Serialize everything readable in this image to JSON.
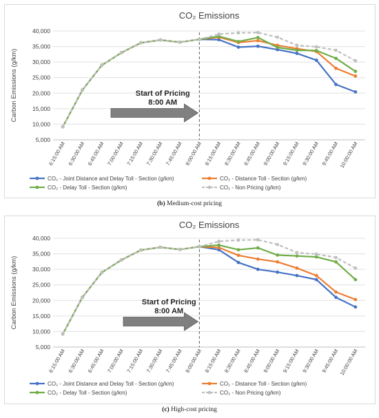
{
  "chart_data": [
    {
      "type": "line",
      "title": "CO₂ Emissions",
      "ylabel": "Carbon Emissions (g/km)",
      "ylim": [
        5000,
        40000
      ],
      "yticks": [
        "5,000",
        "10,000",
        "15,000",
        "20,000",
        "25,000",
        "30,000",
        "35,000",
        "40,000"
      ],
      "categories": [
        "6:15:00 AM",
        "6:30:00 AM",
        "6:45:00 AM",
        "7:00:00 AM",
        "7:15:00 AM",
        "7:30:00 AM",
        "7:45:00 AM",
        "8:00:00 AM",
        "8:15:00 AM",
        "8:30:00 AM",
        "8:45:00 AM",
        "9:00:00 AM",
        "9:15:00 AM",
        "9:30:00 AM",
        "9:45:00 AM",
        "10:00:00 AM"
      ],
      "annotation": {
        "line1": "Start of Pricing",
        "line2": "8:00 AM",
        "at": "8:00:00 AM"
      },
      "legend_position": "bottom",
      "series": [
        {
          "name": "CO₂ - Joint Distance and Delay Toll - Section (g/km)",
          "color": "#4472c4",
          "style": "solid",
          "values": [
            9200,
            21000,
            29000,
            33000,
            36200,
            37100,
            36400,
            37300,
            37200,
            34800,
            35100,
            34000,
            32800,
            30600,
            22800,
            20400
          ]
        },
        {
          "name": "CO₂ - Distance Toll - Section (g/km)",
          "color": "#ed7d31",
          "style": "solid",
          "values": [
            9200,
            21000,
            29000,
            33000,
            36200,
            37100,
            36400,
            37300,
            38000,
            36300,
            36900,
            35400,
            34300,
            33400,
            28000,
            25500
          ]
        },
        {
          "name": "CO₂ - Delay Toll - Section (g/km)",
          "color": "#70ad47",
          "style": "solid",
          "values": [
            9200,
            21000,
            29000,
            33000,
            36200,
            37100,
            36400,
            37300,
            38300,
            36600,
            37900,
            34700,
            33800,
            33700,
            31200,
            27000
          ]
        },
        {
          "name": "CO₂ - Non Pricing (g/km)",
          "color": "#bfbfbf",
          "style": "dashed",
          "values": [
            9200,
            21000,
            29000,
            33000,
            36200,
            37100,
            36400,
            37300,
            39000,
            39400,
            39500,
            38000,
            35400,
            34900,
            33800,
            30400
          ]
        }
      ]
    },
    {
      "type": "line",
      "title": "CO₂ Emissions",
      "ylabel": "Carbon Emissions (g/km)",
      "ylim": [
        5000,
        40000
      ],
      "yticks": [
        "5,000",
        "10,000",
        "15,000",
        "20,000",
        "25,000",
        "30,000",
        "35,000",
        "40,000"
      ],
      "categories": [
        "6:15:00 AM",
        "6:30:00 AM",
        "6:45:00 AM",
        "7:00:00 AM",
        "7:15:00 AM",
        "7:30:00 AM",
        "7:45:00 AM",
        "8:00:00 AM",
        "8:15:00 AM",
        "8:30:00 AM",
        "8:45:00 AM",
        "9:00:00 AM",
        "9:15:00 AM",
        "9:30:00 AM",
        "9:45:00 AM",
        "10:00:00 AM"
      ],
      "annotation": {
        "line1": "Start of Pricing",
        "line2": "8:00 AM",
        "at": "8:00:00 AM"
      },
      "legend_position": "bottom",
      "series": [
        {
          "name": "CO₂ - Joint Distance and Delay Toll - Section (g/km)",
          "color": "#4472c4",
          "style": "solid",
          "values": [
            9200,
            21000,
            29000,
            33000,
            36200,
            37100,
            36400,
            37300,
            36300,
            32200,
            30000,
            29100,
            28000,
            26700,
            21000,
            17900
          ]
        },
        {
          "name": "CO₂ - Distance Toll - Section (g/km)",
          "color": "#ed7d31",
          "style": "solid",
          "values": [
            9200,
            21000,
            29000,
            33000,
            36200,
            37100,
            36400,
            37300,
            37000,
            34500,
            33300,
            32400,
            30400,
            28000,
            22700,
            20300
          ]
        },
        {
          "name": "CO₂ - Delay Toll - Section (g/km)",
          "color": "#70ad47",
          "style": "solid",
          "values": [
            9200,
            21000,
            29000,
            33000,
            36200,
            37100,
            36400,
            37300,
            37800,
            36300,
            36900,
            34600,
            34300,
            34000,
            32400,
            26700
          ]
        },
        {
          "name": "CO₂ - Non Pricing (g/km)",
          "color": "#bfbfbf",
          "style": "dashed",
          "values": [
            9200,
            21000,
            29000,
            33000,
            36200,
            37100,
            36400,
            37300,
            39000,
            39400,
            39500,
            38000,
            35400,
            34900,
            33800,
            30400
          ]
        }
      ]
    }
  ],
  "captions": [
    {
      "label": "(b)",
      "text": "Medium-cost pricing"
    },
    {
      "label": "(c)",
      "text": "High-cost pricing"
    }
  ]
}
